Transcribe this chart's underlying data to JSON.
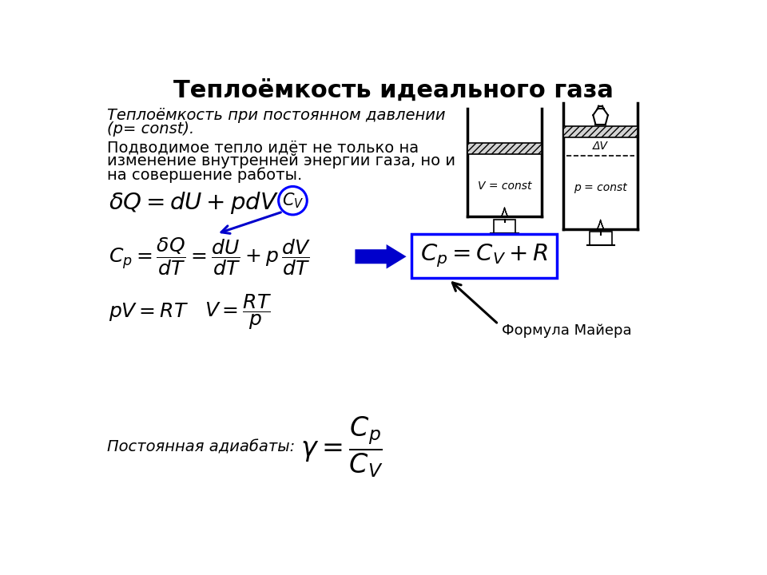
{
  "title": "Теплоёмкость идеального газа",
  "subtitle_italic": "Теплоёмкость при постоянном давлении",
  "subtitle_italic2": "(р= const).",
  "body_text_1": "Подводимое тепло идёт не только на",
  "body_text_2": "изменение внутренней энергии газа, но и",
  "body_text_3": "на совершение работы.",
  "formula_label": "Формула Майера",
  "postoyannaya_label": "Постоянная адиабаты:",
  "bg_color": "#ffffff",
  "title_fontsize": 22,
  "text_fontsize": 14,
  "box_color": "#0000ff",
  "arrow_color": "#0000cc",
  "circle_color": "#0000ff",
  "lbl_vcst": "V = const",
  "lbl_pcst": "p = const",
  "lbl_dv": "ΔV"
}
